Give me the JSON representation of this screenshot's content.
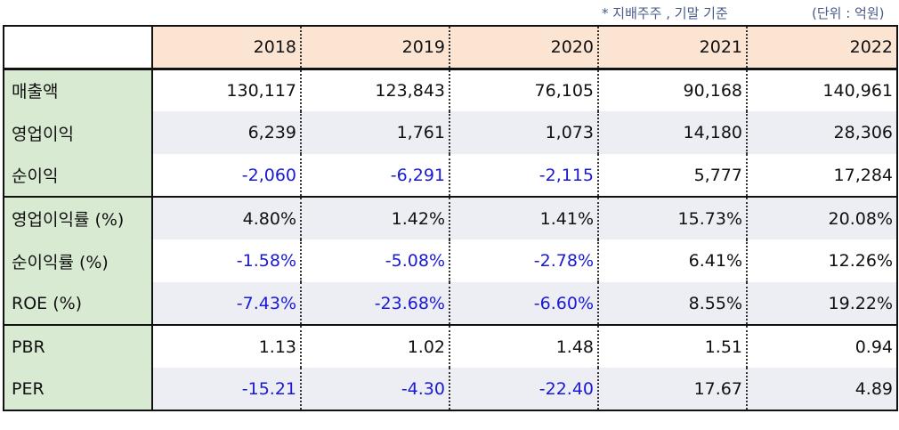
{
  "notes": {
    "basis": "* 지배주주 , 기말 기준",
    "unit": "(단위 : 억원)"
  },
  "years": [
    "2018",
    "2019",
    "2020",
    "2021",
    "2022"
  ],
  "rows": [
    {
      "label": "매출액",
      "values": [
        "130,117",
        "123,843",
        "76,105",
        "90,168",
        "140,961"
      ]
    },
    {
      "label": "영업이익",
      "values": [
        "6,239",
        "1,761",
        "1,073",
        "14,180",
        "28,306"
      ]
    },
    {
      "label": "순이익",
      "values": [
        "-2,060",
        "-6,291",
        "-2,115",
        "5,777",
        "17,284"
      ]
    },
    {
      "label": "영업이익률 (%)",
      "values": [
        "4.80%",
        "1.42%",
        "1.41%",
        "15.73%",
        "20.08%"
      ]
    },
    {
      "label": "순이익률 (%)",
      "values": [
        "-1.58%",
        "-5.08%",
        "-2.78%",
        "6.41%",
        "12.26%"
      ]
    },
    {
      "label": "ROE (%)",
      "values": [
        "-7.43%",
        "-23.68%",
        "-6.60%",
        "8.55%",
        "19.22%"
      ]
    },
    {
      "label": "PBR",
      "values": [
        "1.13",
        "1.02",
        "1.48",
        "1.51",
        "0.94"
      ]
    },
    {
      "label": "PER",
      "values": [
        "-15.21",
        "-4.30",
        "-22.40",
        "17.67",
        "4.89"
      ]
    }
  ],
  "colors": {
    "negative": "#1a1ad6",
    "header_bg": "#fce4d2",
    "label_bg": "#d9ead2",
    "shade_bg": "#eceef3"
  }
}
